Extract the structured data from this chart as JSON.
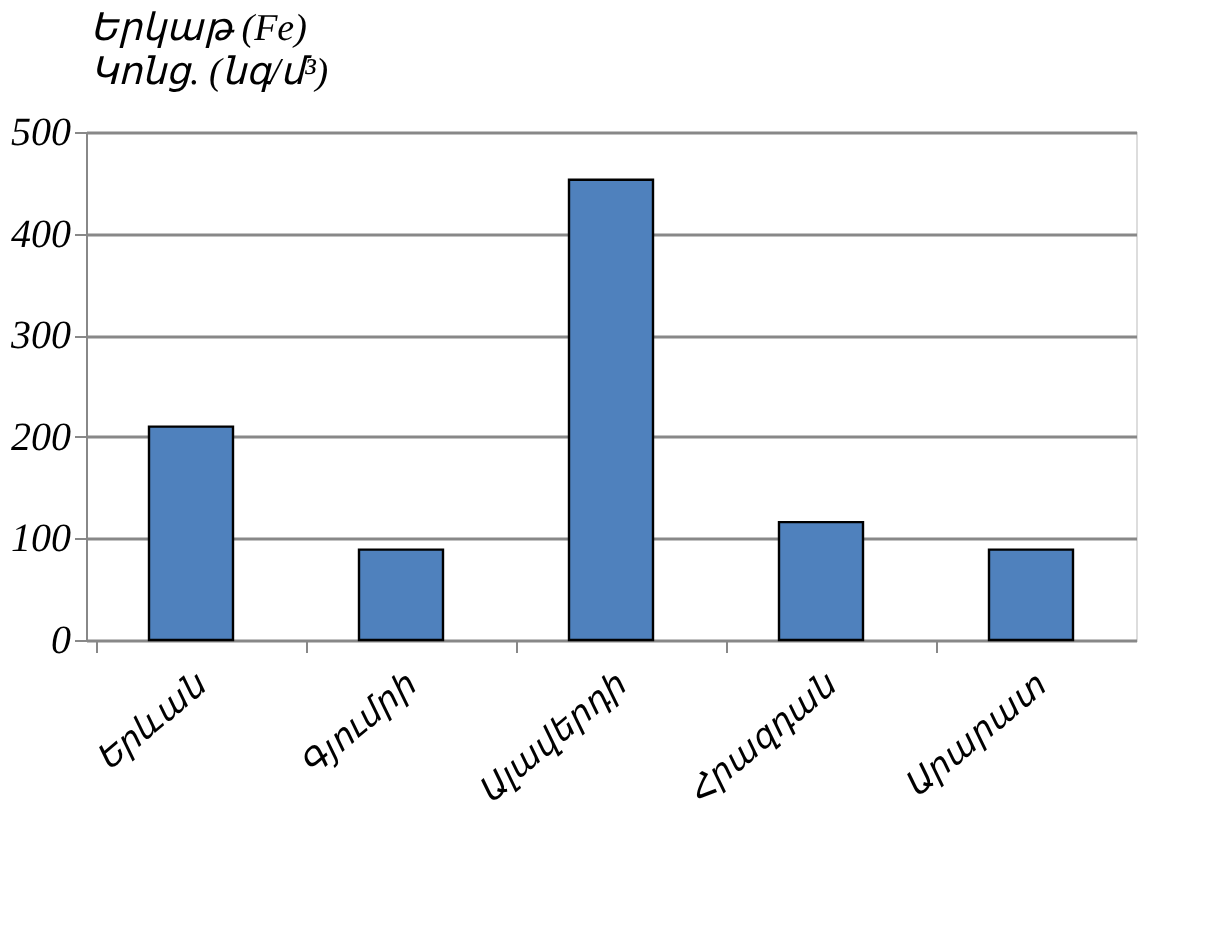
{
  "chart_data": {
    "type": "bar",
    "title": "Երկաթ (Fe)",
    "subtitle": "Կոնց. (նգ/մ³)",
    "categories": [
      "Երևան",
      "Գյումրի",
      "Ալավերդի",
      "Հրազդան",
      "Արարատ"
    ],
    "values": [
      210,
      89,
      453,
      116,
      89
    ],
    "color": "#4f81bd",
    "ylim": [
      0,
      500
    ],
    "yticks": [
      0,
      100,
      200,
      300,
      400,
      500
    ],
    "grid": "y"
  }
}
